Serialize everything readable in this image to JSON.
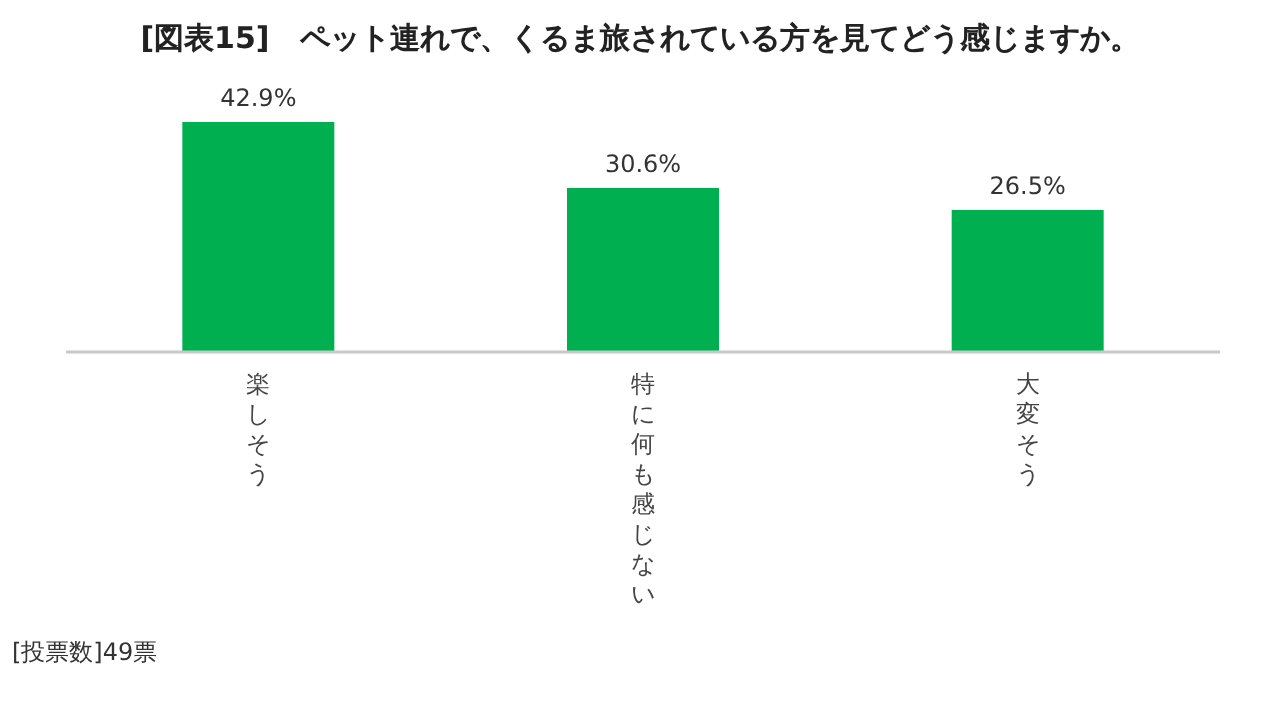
{
  "chart_data": {
    "type": "bar",
    "title": "[図表15]　ペット連れで、くるま旅されている方を見てどう感じますか。",
    "categories": [
      "楽しそう",
      "特に何も感じない",
      "大変そう"
    ],
    "values": [
      42.9,
      30.6,
      26.5
    ],
    "value_labels": [
      "42.9%",
      "30.6%",
      "26.5%"
    ],
    "color": "#00b050",
    "annotations": [
      "[投票数]49票"
    ]
  }
}
